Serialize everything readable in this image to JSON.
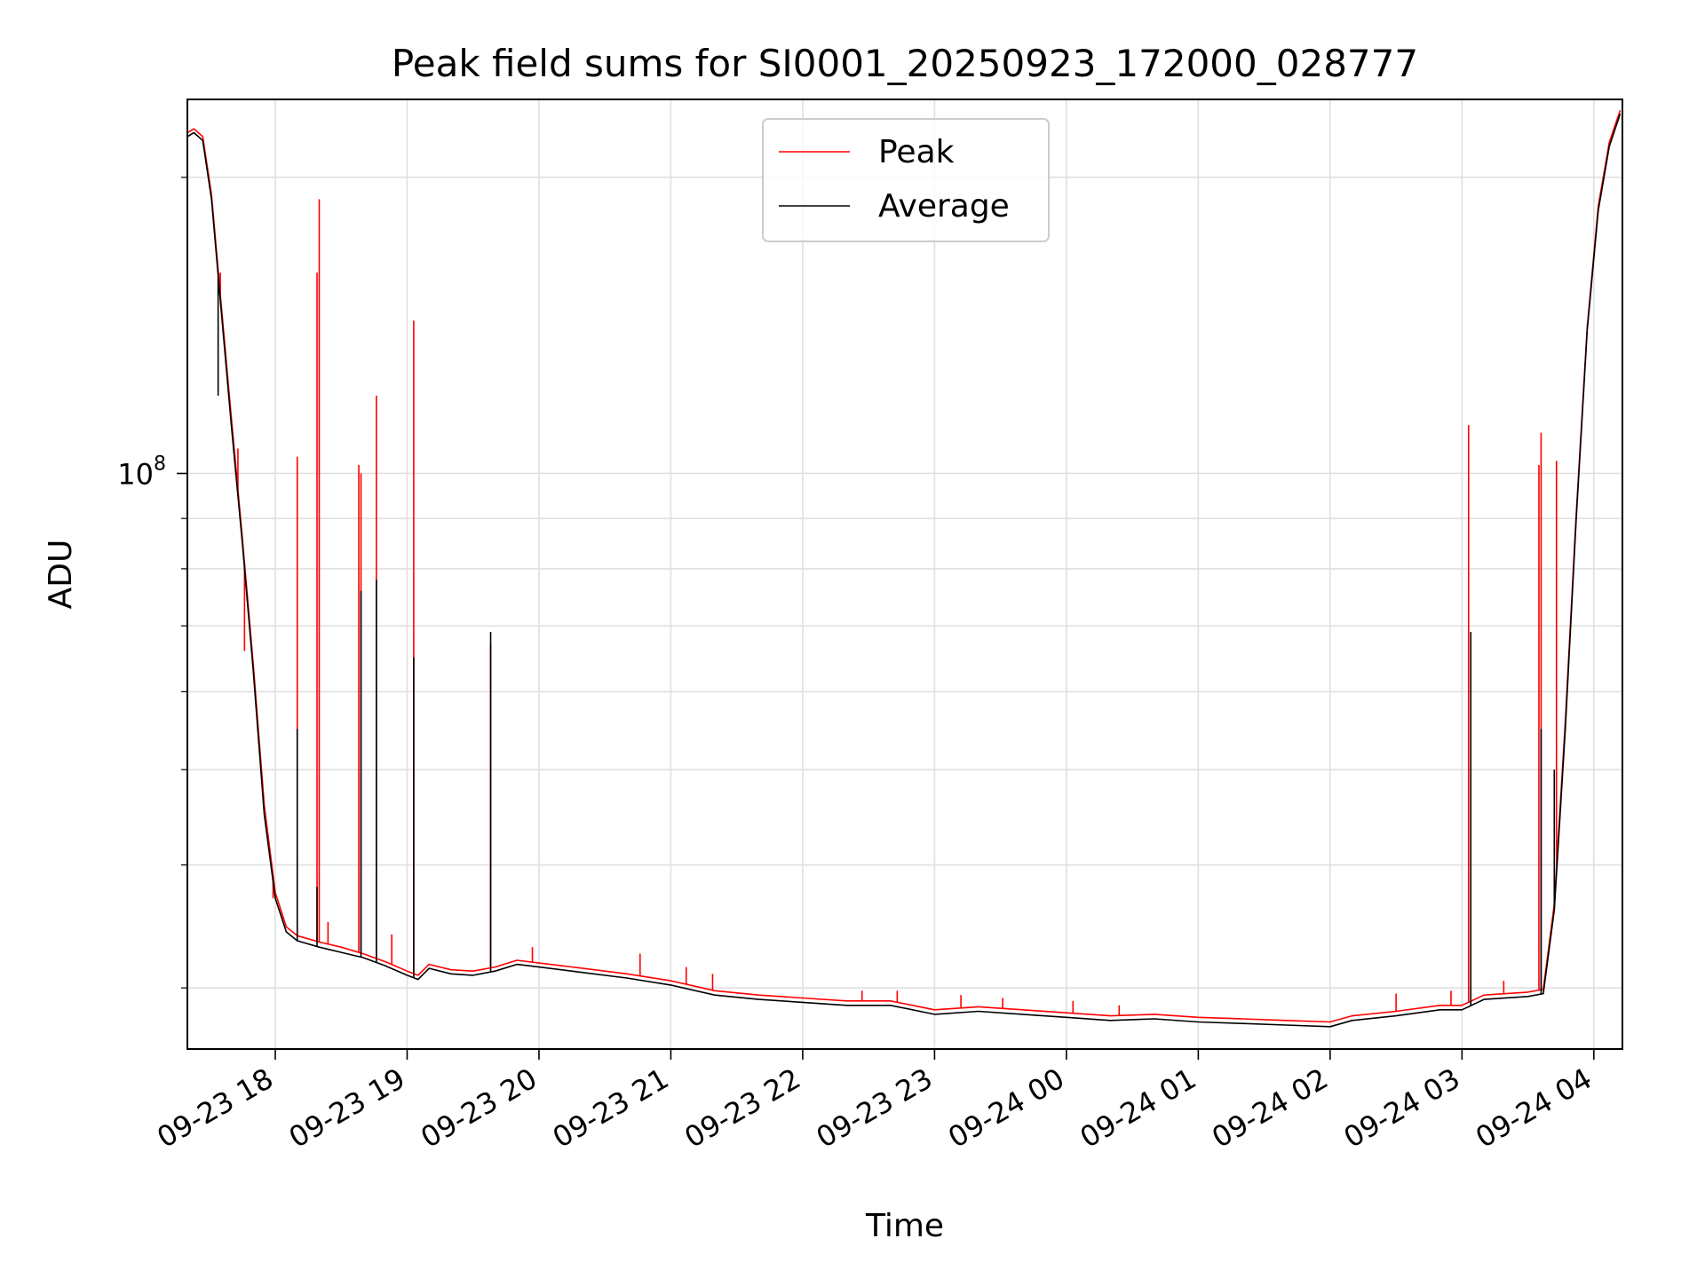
{
  "chart_data": {
    "type": "line",
    "title": "Peak field sums for SI0001_20250923_172000_028777",
    "xlabel": "Time",
    "ylabel": "ADU",
    "x_axis": "time",
    "y_scale": "log",
    "grid": true,
    "legend_position": "top-center",
    "xlim": [
      "2025-09-23 17:20",
      "2025-09-24 04:13"
    ],
    "ylim": [
      26000000,
      240000000
    ],
    "x_ticks": [
      {
        "t": "2025-09-23 18:00",
        "label": "09-23 18"
      },
      {
        "t": "2025-09-23 19:00",
        "label": "09-23 19"
      },
      {
        "t": "2025-09-23 20:00",
        "label": "09-23 20"
      },
      {
        "t": "2025-09-23 21:00",
        "label": "09-23 21"
      },
      {
        "t": "2025-09-23 22:00",
        "label": "09-23 22"
      },
      {
        "t": "2025-09-23 23:00",
        "label": "09-23 23"
      },
      {
        "t": "2025-09-24 00:00",
        "label": "09-24 00"
      },
      {
        "t": "2025-09-24 01:00",
        "label": "09-24 01"
      },
      {
        "t": "2025-09-24 02:00",
        "label": "09-24 02"
      },
      {
        "t": "2025-09-24 03:00",
        "label": "09-24 03"
      },
      {
        "t": "2025-09-24 04:00",
        "label": "09-24 04"
      }
    ],
    "y_ticks": [
      {
        "value": 100000000,
        "base": "10",
        "exp": "8"
      }
    ],
    "series": [
      {
        "name": "Average",
        "color": "#000000",
        "points": [
          [
            "2025-09-23 17:20",
            220000000
          ],
          [
            "2025-09-23 17:23",
            222000000
          ],
          [
            "2025-09-23 17:27",
            218000000
          ],
          [
            "2025-09-23 17:31",
            190000000
          ],
          [
            "2025-09-23 17:35",
            150000000
          ],
          [
            "2025-09-23 17:40",
            112000000
          ],
          [
            "2025-09-23 17:45",
            85000000
          ],
          [
            "2025-09-23 17:50",
            63000000
          ],
          [
            "2025-09-23 17:55",
            45000000
          ],
          [
            "2025-09-23 18:00",
            37000000
          ],
          [
            "2025-09-23 18:05",
            34200000
          ],
          [
            "2025-09-23 18:10",
            33500000
          ],
          [
            "2025-09-23 18:20",
            33000000
          ],
          [
            "2025-09-23 18:30",
            32600000
          ],
          [
            "2025-09-23 18:40",
            32200000
          ],
          [
            "2025-09-23 18:50",
            31600000
          ],
          [
            "2025-09-23 19:00",
            30900000
          ],
          [
            "2025-09-23 19:05",
            30600000
          ],
          [
            "2025-09-23 19:10",
            31400000
          ],
          [
            "2025-09-23 19:20",
            31000000
          ],
          [
            "2025-09-23 19:30",
            30900000
          ],
          [
            "2025-09-23 19:40",
            31200000
          ],
          [
            "2025-09-23 19:50",
            31700000
          ],
          [
            "2025-09-23 20:00",
            31500000
          ],
          [
            "2025-09-23 20:20",
            31100000
          ],
          [
            "2025-09-23 20:40",
            30700000
          ],
          [
            "2025-09-23 21:00",
            30200000
          ],
          [
            "2025-09-23 21:20",
            29500000
          ],
          [
            "2025-09-23 21:40",
            29200000
          ],
          [
            "2025-09-23 22:00",
            29000000
          ],
          [
            "2025-09-23 22:20",
            28800000
          ],
          [
            "2025-09-23 22:40",
            28800000
          ],
          [
            "2025-09-23 23:00",
            28200000
          ],
          [
            "2025-09-23 23:20",
            28400000
          ],
          [
            "2025-09-23 23:40",
            28200000
          ],
          [
            "2025-09-24 00:00",
            28000000
          ],
          [
            "2025-09-24 00:20",
            27800000
          ],
          [
            "2025-09-24 00:40",
            27900000
          ],
          [
            "2025-09-24 01:00",
            27700000
          ],
          [
            "2025-09-24 01:20",
            27600000
          ],
          [
            "2025-09-24 01:40",
            27500000
          ],
          [
            "2025-09-24 02:00",
            27400000
          ],
          [
            "2025-09-24 02:10",
            27800000
          ],
          [
            "2025-09-24 02:30",
            28100000
          ],
          [
            "2025-09-24 02:50",
            28500000
          ],
          [
            "2025-09-24 03:00",
            28500000
          ],
          [
            "2025-09-24 03:10",
            29200000
          ],
          [
            "2025-09-24 03:30",
            29400000
          ],
          [
            "2025-09-24 03:37",
            29600000
          ],
          [
            "2025-09-24 03:42",
            36000000
          ],
          [
            "2025-09-24 03:47",
            55000000
          ],
          [
            "2025-09-24 03:52",
            90000000
          ],
          [
            "2025-09-24 03:57",
            140000000
          ],
          [
            "2025-09-24 04:02",
            185000000
          ],
          [
            "2025-09-24 04:07",
            215000000
          ],
          [
            "2025-09-24 04:12",
            232000000
          ]
        ],
        "spikes": [
          [
            "2025-09-23 17:34",
            120000000
          ],
          [
            "2025-09-23 18:10",
            55000000
          ],
          [
            "2025-09-23 18:19",
            38000000
          ],
          [
            "2025-09-23 18:39",
            76000000
          ],
          [
            "2025-09-23 18:46",
            78000000
          ],
          [
            "2025-09-23 19:03",
            65000000
          ],
          [
            "2025-09-23 19:38",
            69000000
          ],
          [
            "2025-09-24 03:04",
            69000000
          ],
          [
            "2025-09-24 03:36",
            55000000
          ],
          [
            "2025-09-24 03:42",
            50000000
          ]
        ]
      },
      {
        "name": "Peak",
        "color": "#ff0000",
        "points": [
          [
            "2025-09-23 17:20",
            222000000
          ],
          [
            "2025-09-23 17:23",
            224000000
          ],
          [
            "2025-09-23 17:27",
            220000000
          ],
          [
            "2025-09-23 17:31",
            192000000
          ],
          [
            "2025-09-23 17:35",
            152000000
          ],
          [
            "2025-09-23 17:40",
            114000000
          ],
          [
            "2025-09-23 17:45",
            86000000
          ],
          [
            "2025-09-23 17:50",
            64000000
          ],
          [
            "2025-09-23 17:55",
            46000000
          ],
          [
            "2025-09-23 18:00",
            37500000
          ],
          [
            "2025-09-23 18:05",
            34600000
          ],
          [
            "2025-09-23 18:10",
            33900000
          ],
          [
            "2025-09-23 18:20",
            33400000
          ],
          [
            "2025-09-23 18:30",
            33000000
          ],
          [
            "2025-09-23 18:40",
            32500000
          ],
          [
            "2025-09-23 18:50",
            31900000
          ],
          [
            "2025-09-23 19:00",
            31200000
          ],
          [
            "2025-09-23 19:05",
            30900000
          ],
          [
            "2025-09-23 19:10",
            31700000
          ],
          [
            "2025-09-23 19:20",
            31300000
          ],
          [
            "2025-09-23 19:30",
            31200000
          ],
          [
            "2025-09-23 19:40",
            31500000
          ],
          [
            "2025-09-23 19:50",
            32000000
          ],
          [
            "2025-09-23 20:00",
            31800000
          ],
          [
            "2025-09-23 20:20",
            31400000
          ],
          [
            "2025-09-23 20:40",
            31000000
          ],
          [
            "2025-09-23 21:00",
            30500000
          ],
          [
            "2025-09-23 21:20",
            29800000
          ],
          [
            "2025-09-23 21:40",
            29500000
          ],
          [
            "2025-09-23 22:00",
            29300000
          ],
          [
            "2025-09-23 22:20",
            29100000
          ],
          [
            "2025-09-23 22:40",
            29100000
          ],
          [
            "2025-09-23 23:00",
            28500000
          ],
          [
            "2025-09-23 23:20",
            28700000
          ],
          [
            "2025-09-23 23:40",
            28500000
          ],
          [
            "2025-09-24 00:00",
            28300000
          ],
          [
            "2025-09-24 00:20",
            28100000
          ],
          [
            "2025-09-24 00:40",
            28200000
          ],
          [
            "2025-09-24 01:00",
            28000000
          ],
          [
            "2025-09-24 01:20",
            27900000
          ],
          [
            "2025-09-24 01:40",
            27800000
          ],
          [
            "2025-09-24 02:00",
            27700000
          ],
          [
            "2025-09-24 02:10",
            28100000
          ],
          [
            "2025-09-24 02:30",
            28400000
          ],
          [
            "2025-09-24 02:50",
            28800000
          ],
          [
            "2025-09-24 03:00",
            28800000
          ],
          [
            "2025-09-24 03:10",
            29500000
          ],
          [
            "2025-09-24 03:30",
            29700000
          ],
          [
            "2025-09-24 03:37",
            29900000
          ],
          [
            "2025-09-24 03:42",
            36500000
          ],
          [
            "2025-09-24 03:47",
            56000000
          ],
          [
            "2025-09-24 03:52",
            91000000
          ],
          [
            "2025-09-24 03:57",
            141000000
          ],
          [
            "2025-09-24 04:02",
            187000000
          ],
          [
            "2025-09-24 04:07",
            217000000
          ],
          [
            "2025-09-24 04:12",
            234000000
          ]
        ],
        "spikes": [
          [
            "2025-09-23 17:35",
            160000000
          ],
          [
            "2025-09-23 17:43",
            106000000
          ],
          [
            "2025-09-23 17:46",
            66000000
          ],
          [
            "2025-09-23 17:59",
            37000000
          ],
          [
            "2025-09-23 18:10",
            104000000
          ],
          [
            "2025-09-23 18:19",
            160000000
          ],
          [
            "2025-09-23 18:20",
            190000000
          ],
          [
            "2025-09-23 18:24",
            35000000
          ],
          [
            "2025-09-23 18:38",
            102000000
          ],
          [
            "2025-09-23 18:39",
            100000000
          ],
          [
            "2025-09-23 18:46",
            120000000
          ],
          [
            "2025-09-23 18:53",
            34000000
          ],
          [
            "2025-09-23 19:03",
            143000000
          ],
          [
            "2025-09-23 19:38",
            67000000
          ],
          [
            "2025-09-23 19:57",
            33000000
          ],
          [
            "2025-09-23 20:46",
            32500000
          ],
          [
            "2025-09-23 21:07",
            31500000
          ],
          [
            "2025-09-23 21:19",
            31000000
          ],
          [
            "2025-09-23 22:27",
            29800000
          ],
          [
            "2025-09-23 22:43",
            29800000
          ],
          [
            "2025-09-23 23:12",
            29500000
          ],
          [
            "2025-09-23 23:31",
            29300000
          ],
          [
            "2025-09-24 00:03",
            29100000
          ],
          [
            "2025-09-24 00:24",
            28800000
          ],
          [
            "2025-09-24 02:30",
            29600000
          ],
          [
            "2025-09-24 02:55",
            29800000
          ],
          [
            "2025-09-24 03:03",
            112000000
          ],
          [
            "2025-09-24 03:35",
            102000000
          ],
          [
            "2025-09-24 03:36",
            110000000
          ],
          [
            "2025-09-24 03:43",
            103000000
          ],
          [
            "2025-09-24 03:39",
            32000000
          ],
          [
            "2025-09-24 03:19",
            30500000
          ]
        ]
      }
    ]
  }
}
